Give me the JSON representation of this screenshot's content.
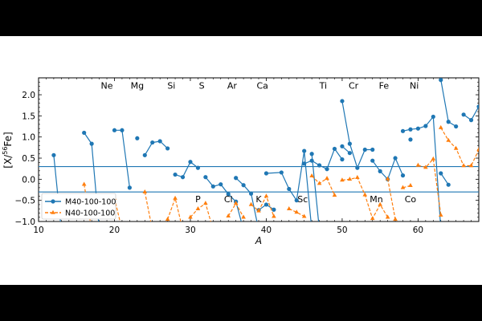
{
  "chart_data": {
    "type": "line",
    "xlabel": "A",
    "ylabel": "[X/56Fe]",
    "ylabel_parts": {
      "open": "[X/",
      "sup": "56",
      "rest": "Fe]"
    },
    "xlim": [
      10,
      68
    ],
    "ylim": [
      -1.0,
      2.4
    ],
    "xticks": [
      10,
      20,
      30,
      40,
      50,
      60
    ],
    "yticks": [
      -1.0,
      -0.5,
      0.0,
      0.5,
      1.0,
      1.5,
      2.0
    ],
    "ytick_labels": [
      "−1.0",
      "−0.5",
      "0.0",
      "0.5",
      "1.0",
      "1.5",
      "2.0"
    ],
    "hlines": [
      0.3,
      -0.3
    ],
    "legend_position": "lower-left",
    "elements_top": [
      {
        "text": "Ne",
        "x": 19.0,
        "y": 2.22
      },
      {
        "text": "Mg",
        "x": 23.0,
        "y": 2.22
      },
      {
        "text": "Si",
        "x": 27.5,
        "y": 2.22
      },
      {
        "text": "S",
        "x": 31.5,
        "y": 2.22
      },
      {
        "text": "Ar",
        "x": 35.5,
        "y": 2.22
      },
      {
        "text": "Ca",
        "x": 39.5,
        "y": 2.22
      },
      {
        "text": "Ti",
        "x": 47.5,
        "y": 2.22
      },
      {
        "text": "Cr",
        "x": 51.5,
        "y": 2.22
      },
      {
        "text": "Fe",
        "x": 55.5,
        "y": 2.22
      },
      {
        "text": "Ni",
        "x": 59.5,
        "y": 2.22
      }
    ],
    "elements_bottom": [
      {
        "text": "P",
        "x": 31.0,
        "y": -0.47
      },
      {
        "text": "Cl",
        "x": 35.0,
        "y": -0.47
      },
      {
        "text": "K",
        "x": 39.0,
        "y": -0.47
      },
      {
        "text": "Sc",
        "x": 44.8,
        "y": -0.47
      },
      {
        "text": "Mn",
        "x": 54.5,
        "y": -0.47
      },
      {
        "text": "Co",
        "x": 59.0,
        "y": -0.47
      }
    ],
    "series": [
      {
        "name": "M40-100-100",
        "color": "#1f77b4",
        "dashed": false,
        "marker": "circle",
        "segments": [
          [
            [
              12,
              0.57
            ],
            [
              13,
              -1.2
            ]
          ],
          [
            [
              16,
              1.1
            ],
            [
              17,
              0.84
            ],
            [
              18,
              -1.2
            ]
          ],
          [
            [
              20,
              1.16
            ],
            [
              21,
              1.16
            ],
            [
              22,
              -0.2
            ]
          ],
          [
            [
              23,
              0.97
            ]
          ],
          [
            [
              24,
              0.57
            ],
            [
              25,
              0.87
            ],
            [
              26,
              0.9
            ],
            [
              27,
              0.73
            ]
          ],
          [
            [
              28,
              0.11
            ],
            [
              29,
              0.05
            ],
            [
              30,
              0.41
            ],
            [
              31,
              0.27
            ]
          ],
          [
            [
              32,
              0.05
            ],
            [
              33,
              -0.17
            ],
            [
              34,
              -0.12
            ],
            [
              35,
              -0.35
            ],
            [
              36,
              -0.53
            ],
            [
              37,
              -1.2
            ]
          ],
          [
            [
              36,
              0.03
            ],
            [
              37,
              -0.14
            ],
            [
              38,
              -0.34
            ],
            [
              39,
              -1.2
            ]
          ],
          [
            [
              39,
              -0.73
            ],
            [
              40,
              -0.6
            ],
            [
              41,
              -0.72
            ]
          ],
          [
            [
              40,
              0.14
            ],
            [
              42,
              0.16
            ],
            [
              43,
              -0.23
            ],
            [
              44,
              -0.5
            ],
            [
              45,
              0.67
            ],
            [
              46,
              -1.2
            ]
          ],
          [
            [
              45,
              0.37
            ],
            [
              46,
              0.44
            ],
            [
              47,
              0.33
            ],
            [
              48,
              0.24
            ],
            [
              49,
              0.72
            ],
            [
              50,
              0.47
            ]
          ],
          [
            [
              46,
              0.6
            ],
            [
              47,
              -1.2
            ]
          ],
          [
            [
              50,
              1.85
            ],
            [
              51,
              0.84
            ],
            [
              52,
              0.27
            ],
            [
              53,
              0.7
            ],
            [
              54,
              0.7
            ]
          ],
          [
            [
              50,
              0.78
            ],
            [
              51,
              0.62
            ]
          ],
          [
            [
              54,
              0.44
            ],
            [
              55,
              0.19
            ],
            [
              56,
              0.0
            ],
            [
              57,
              0.5
            ],
            [
              58,
              0.09
            ]
          ],
          [
            [
              58,
              1.14
            ],
            [
              59,
              1.18
            ],
            [
              60,
              1.2
            ],
            [
              61,
              1.26
            ],
            [
              62,
              1.48
            ],
            [
              63,
              -1.2
            ]
          ],
          [
            [
              59,
              0.94
            ]
          ],
          [
            [
              63,
              2.35
            ],
            [
              64,
              1.36
            ],
            [
              65,
              1.25
            ]
          ],
          [
            [
              63,
              0.14
            ],
            [
              64,
              -0.13
            ]
          ],
          [
            [
              66,
              1.53
            ],
            [
              67,
              1.4
            ],
            [
              68,
              1.72
            ]
          ]
        ]
      },
      {
        "name": "N40-100-100",
        "color": "#ff7f0e",
        "dashed": true,
        "marker": "triangle",
        "segments": [
          [
            [
              16,
              -0.12
            ],
            [
              17,
              -1.2
            ]
          ],
          [
            [
              20,
              -0.45
            ],
            [
              21,
              -1.2
            ]
          ],
          [
            [
              24,
              -0.3
            ],
            [
              25,
              -1.2
            ]
          ],
          [
            [
              27,
              -0.95
            ],
            [
              28,
              -0.45
            ],
            [
              29,
              -1.2
            ]
          ],
          [
            [
              30,
              -0.9
            ],
            [
              31,
              -0.7
            ],
            [
              32,
              -0.57
            ],
            [
              33,
              -1.2
            ]
          ],
          [
            [
              35,
              -0.87
            ],
            [
              36,
              -0.57
            ],
            [
              37,
              -0.9
            ]
          ],
          [
            [
              38,
              -0.6
            ],
            [
              39,
              -0.75
            ],
            [
              40,
              -0.4
            ],
            [
              41,
              -0.88
            ]
          ],
          [
            [
              43,
              -0.7
            ],
            [
              44,
              -0.78
            ],
            [
              45,
              -0.88
            ]
          ],
          [
            [
              46,
              0.08
            ],
            [
              47,
              -0.1
            ],
            [
              48,
              0.02
            ],
            [
              49,
              -0.38
            ]
          ],
          [
            [
              50,
              -0.02
            ],
            [
              51,
              0.0
            ],
            [
              52,
              0.04
            ],
            [
              53,
              -0.37
            ],
            [
              54,
              -0.93
            ],
            [
              55,
              -0.6
            ],
            [
              56,
              -0.9
            ]
          ],
          [
            [
              56,
              0.01
            ],
            [
              57,
              -0.95
            ]
          ],
          [
            [
              58,
              -0.2
            ],
            [
              59,
              -0.15
            ]
          ],
          [
            [
              60,
              0.33
            ],
            [
              61,
              0.28
            ],
            [
              62,
              0.48
            ],
            [
              63,
              -0.85
            ]
          ],
          [
            [
              63,
              1.22
            ],
            [
              64,
              0.92
            ],
            [
              65,
              0.73
            ],
            [
              66,
              0.32
            ],
            [
              67,
              0.32
            ],
            [
              68,
              0.7
            ]
          ]
        ]
      }
    ]
  }
}
